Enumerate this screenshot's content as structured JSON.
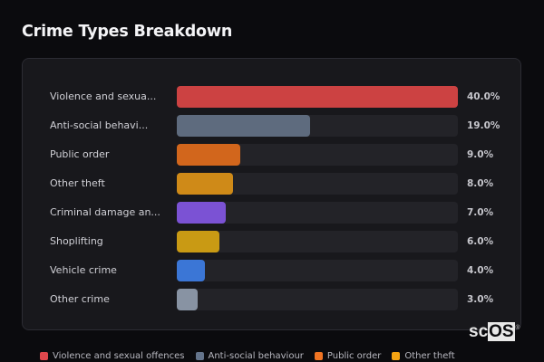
{
  "header": {
    "title": "Crime Types Breakdown"
  },
  "chart_data": {
    "type": "bar",
    "orientation": "horizontal",
    "title": "Crime Types Breakdown",
    "xlabel": "",
    "ylabel": "",
    "unit": "%",
    "categories": [
      "Violence and sexual offences",
      "Anti-social behaviour",
      "Public order",
      "Other theft",
      "Criminal damage and arson",
      "Shoplifting",
      "Vehicle crime",
      "Other crime"
    ],
    "display_labels": [
      "Violence and sexua...",
      "Anti-social behavi...",
      "Public order",
      "Other theft",
      "Criminal damage an...",
      "Shoplifting",
      "Vehicle crime",
      "Other crime"
    ],
    "values": [
      40.0,
      19.0,
      9.0,
      8.0,
      7.0,
      6.0,
      4.0,
      3.0
    ],
    "value_labels": [
      "40.0%",
      "19.0%",
      "9.0%",
      "8.0%",
      "7.0%",
      "6.0%",
      "4.0%",
      "3.0%"
    ],
    "colors": [
      "#cc4242",
      "#5e6b7e",
      "#d2661c",
      "#cf8a18",
      "#7b52d4",
      "#c99a14",
      "#3b76d6",
      "#8893a3"
    ],
    "xlim": [
      0,
      40
    ],
    "grid": false,
    "legend_position": "bottom",
    "legend": [
      {
        "label": "Violence and sexual offences",
        "color": "#e0474c"
      },
      {
        "label": "Anti-social behaviour",
        "color": "#64748b"
      },
      {
        "label": "Public order",
        "color": "#f07423"
      },
      {
        "label": "Other theft",
        "color": "#f5a413"
      }
    ]
  },
  "rows": [
    {
      "label": "Violence and sexua...",
      "value": "40.0%",
      "pct": 100,
      "color": "#cc4242"
    },
    {
      "label": "Anti-social behavi...",
      "value": "19.0%",
      "pct": 47.5,
      "color": "#5e6b7e"
    },
    {
      "label": "Public order",
      "value": "9.0%",
      "pct": 22.5,
      "color": "#d2661c"
    },
    {
      "label": "Other theft",
      "value": "8.0%",
      "pct": 20,
      "color": "#cf8a18"
    },
    {
      "label": "Criminal damage an...",
      "value": "7.0%",
      "pct": 17.5,
      "color": "#7b52d4"
    },
    {
      "label": "Shoplifting",
      "value": "6.0%",
      "pct": 15,
      "color": "#c99a14"
    },
    {
      "label": "Vehicle crime",
      "value": "4.0%",
      "pct": 10,
      "color": "#3b76d6"
    },
    {
      "label": "Other crime",
      "value": "3.0%",
      "pct": 7.5,
      "color": "#8893a3"
    }
  ],
  "legend": [
    {
      "label": "Violence and sexual offences",
      "color": "#e0474c"
    },
    {
      "label": "Anti-social behaviour",
      "color": "#64748b"
    },
    {
      "label": "Public order",
      "color": "#f07423"
    },
    {
      "label": "Other theft",
      "color": "#f5a413"
    }
  ],
  "logo": {
    "prefix": "sc",
    "highlight": "OS",
    "mark": "®"
  }
}
